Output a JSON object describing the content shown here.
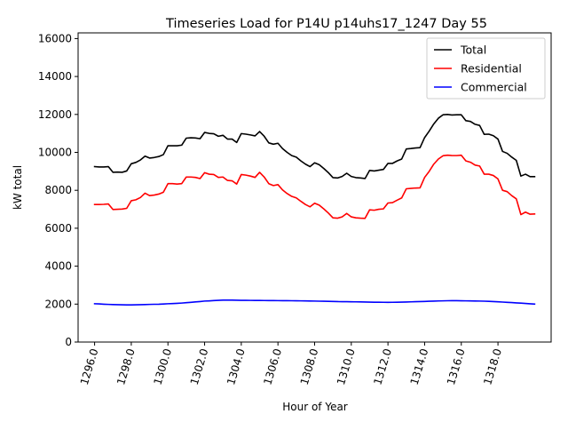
{
  "chart_data": {
    "type": "line",
    "title": "Timeseries Load for P14U p14uhs17_1247  Day 55",
    "xlabel": "Hour of Year",
    "ylabel": "kW total",
    "xlim": [
      1295.1,
      1320.9
    ],
    "ylim": [
      0,
      16300
    ],
    "x_ticks": [
      1296,
      1298,
      1300,
      1302,
      1304,
      1306,
      1308,
      1310,
      1312,
      1314,
      1316,
      1318
    ],
    "x_tick_labels": [
      "1296.0",
      "1298.0",
      "1300.0",
      "1302.0",
      "1304.0",
      "1306.0",
      "1308.0",
      "1310.0",
      "1312.0",
      "1314.0",
      "1316.0",
      "1318.0"
    ],
    "y_ticks": [
      0,
      2000,
      4000,
      6000,
      8000,
      10000,
      12000,
      14000,
      16000
    ],
    "y_tick_labels": [
      "0",
      "2000",
      "4000",
      "6000",
      "8000",
      "10000",
      "12000",
      "14000",
      "16000"
    ],
    "legend_position": "top-right",
    "x_start": 1296,
    "x_step": 0.25,
    "series": [
      {
        "name": "Total",
        "color": "#000000",
        "values": [
          9250,
          9230,
          9230,
          9250,
          8950,
          8960,
          8950,
          9020,
          9400,
          9470,
          9600,
          9800,
          9700,
          9730,
          9780,
          9880,
          10350,
          10350,
          10350,
          10380,
          10750,
          10770,
          10760,
          10720,
          11050,
          11000,
          10980,
          10850,
          10900,
          10700,
          10700,
          10520,
          10990,
          10960,
          10920,
          10870,
          11100,
          10850,
          10500,
          10430,
          10480,
          10200,
          10000,
          9830,
          9750,
          9550,
          9380,
          9250,
          9450,
          9350,
          9150,
          8930,
          8670,
          8650,
          8730,
          8900,
          8730,
          8670,
          8650,
          8620,
          9050,
          9020,
          9060,
          9100,
          9420,
          9420,
          9550,
          9650,
          10180,
          10200,
          10230,
          10250,
          10780,
          11120,
          11500,
          11800,
          11980,
          12000,
          11970,
          11980,
          11980,
          11670,
          11630,
          11480,
          11420,
          10950,
          10960,
          10880,
          10700,
          10050,
          9950,
          9750,
          9580,
          8750,
          8850,
          8720,
          8720
        ]
      },
      {
        "name": "Residential",
        "color": "#ff0000",
        "values": [
          7250,
          7250,
          7260,
          7280,
          6990,
          7000,
          7010,
          7050,
          7450,
          7500,
          7620,
          7850,
          7720,
          7750,
          7800,
          7900,
          8350,
          8350,
          8330,
          8350,
          8700,
          8700,
          8680,
          8620,
          8930,
          8850,
          8830,
          8680,
          8700,
          8520,
          8500,
          8330,
          8830,
          8800,
          8750,
          8680,
          8950,
          8700,
          8350,
          8250,
          8300,
          8020,
          7830,
          7680,
          7600,
          7420,
          7250,
          7130,
          7320,
          7220,
          7020,
          6800,
          6550,
          6530,
          6600,
          6780,
          6600,
          6550,
          6530,
          6520,
          6970,
          6950,
          7000,
          7020,
          7330,
          7350,
          7480,
          7600,
          8080,
          8100,
          8120,
          8130,
          8680,
          9000,
          9380,
          9650,
          9820,
          9850,
          9830,
          9830,
          9850,
          9550,
          9480,
          9330,
          9280,
          8850,
          8850,
          8780,
          8600,
          8000,
          7930,
          7720,
          7550,
          6720,
          6850,
          6740,
          6750
        ]
      },
      {
        "name": "Commercial",
        "color": "#0000ff",
        "values": [
          2020,
          2010,
          1995,
          1985,
          1975,
          1968,
          1962,
          1958,
          1958,
          1962,
          1968,
          1975,
          1985,
          1990,
          1995,
          2005,
          2020,
          2030,
          2040,
          2055,
          2075,
          2095,
          2115,
          2135,
          2160,
          2170,
          2185,
          2200,
          2210,
          2212,
          2210,
          2206,
          2200,
          2198,
          2196,
          2194,
          2192,
          2190,
          2188,
          2186,
          2184,
          2182,
          2180,
          2178,
          2175,
          2172,
          2168,
          2165,
          2160,
          2155,
          2150,
          2145,
          2138,
          2132,
          2128,
          2126,
          2124,
          2120,
          2115,
          2110,
          2105,
          2100,
          2098,
          2096,
          2095,
          2096,
          2100,
          2106,
          2112,
          2120,
          2128,
          2135,
          2142,
          2150,
          2158,
          2166,
          2172,
          2178,
          2182,
          2180,
          2176,
          2172,
          2168,
          2164,
          2160,
          2155,
          2145,
          2135,
          2122,
          2108,
          2094,
          2080,
          2066,
          2050,
          2035,
          2018,
          2000
        ]
      }
    ]
  }
}
